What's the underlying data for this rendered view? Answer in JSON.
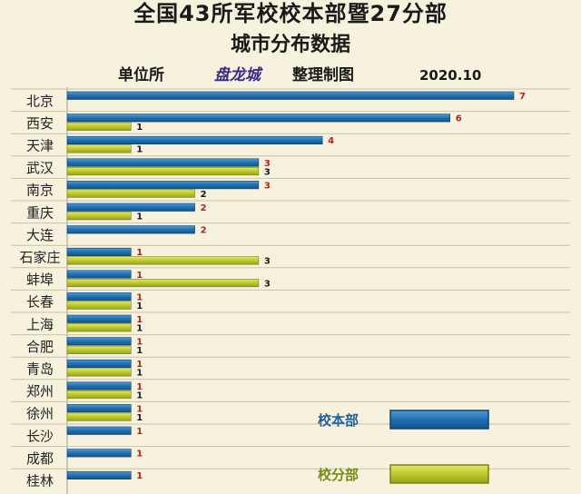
{
  "header": {
    "title_line1": "全国43所军校校本部暨27分部",
    "title_line2": "城市分布数据",
    "unit_label": "单位所",
    "author": "盘龙城",
    "made_label": "整理制图",
    "date": "2020.10"
  },
  "chart_data": {
    "type": "bar",
    "orientation": "horizontal",
    "title": "全国43所军校校本部暨27分部城市分布数据",
    "categories": [
      "北京",
      "西安",
      "天津",
      "武汉",
      "南京",
      "重庆",
      "大连",
      "石家庄",
      "蚌埠",
      "长春",
      "上海",
      "合肥",
      "青岛",
      "郑州",
      "徐州",
      "长沙",
      "成都",
      "桂林"
    ],
    "series": [
      {
        "name": "校本部",
        "color": "#1f6fb2",
        "values": [
          7,
          6,
          4,
          3,
          3,
          2,
          2,
          1,
          1,
          1,
          1,
          1,
          1,
          1,
          1,
          1,
          1,
          1
        ]
      },
      {
        "name": "校分部",
        "color": "#bcc82a",
        "values": [
          null,
          1,
          1,
          3,
          2,
          1,
          null,
          3,
          3,
          1,
          1,
          1,
          1,
          1,
          1,
          null,
          null,
          null
        ]
      }
    ],
    "xlim": [
      0,
      7
    ],
    "grid": "horizontal",
    "legend": "bottom-right"
  }
}
